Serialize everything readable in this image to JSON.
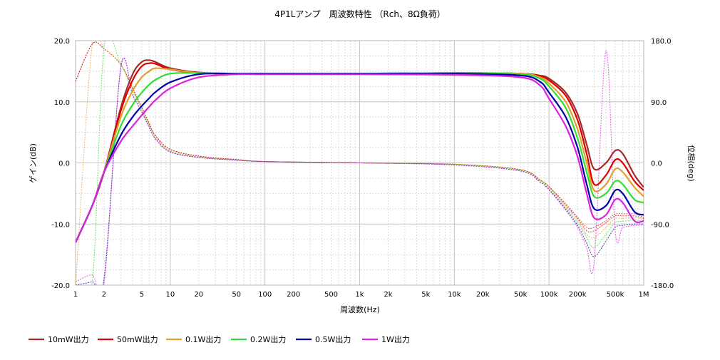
{
  "chart_data": {
    "type": "line",
    "title": "4P1Lアンプ　周波数特性 （Rch、8Ω負荷）",
    "xlabel": "周波数(Hz)",
    "ylabel": "ゲイン(dB)",
    "y2label": "位相(deg)",
    "xscale": "log",
    "xlim": [
      1,
      1000000
    ],
    "ylim": [
      -20,
      20
    ],
    "y2lim": [
      -180,
      180
    ],
    "grid": true,
    "legend_position": "bottom",
    "x_ticks": [
      {
        "v": 1,
        "label": "1"
      },
      {
        "v": 2,
        "label": "2"
      },
      {
        "v": 5,
        "label": "5"
      },
      {
        "v": 10,
        "label": "10"
      },
      {
        "v": 20,
        "label": "20"
      },
      {
        "v": 50,
        "label": "50"
      },
      {
        "v": 100,
        "label": "100"
      },
      {
        "v": 200,
        "label": "200"
      },
      {
        "v": 500,
        "label": "500"
      },
      {
        "v": 1000,
        "label": "1k"
      },
      {
        "v": 2000,
        "label": "2k"
      },
      {
        "v": 5000,
        "label": "5k"
      },
      {
        "v": 10000,
        "label": "10k"
      },
      {
        "v": 20000,
        "label": "20k"
      },
      {
        "v": 50000,
        "label": "50k"
      },
      {
        "v": 100000,
        "label": "100k"
      },
      {
        "v": 200000,
        "label": "200k"
      },
      {
        "v": 500000,
        "label": "500k"
      },
      {
        "v": 1000000,
        "label": "1M"
      }
    ],
    "y_ticks": [
      {
        "v": 20,
        "label": "20.0"
      },
      {
        "v": 10,
        "label": "10.0"
      },
      {
        "v": 0,
        "label": "0.0"
      },
      {
        "v": -10,
        "label": "-10.0"
      },
      {
        "v": -20,
        "label": "-20.0"
      }
    ],
    "y2_ticks": [
      {
        "v": 180,
        "label": "180.0"
      },
      {
        "v": 90,
        "label": "90.0"
      },
      {
        "v": 0,
        "label": "0.0"
      },
      {
        "v": -90,
        "label": "-90.0"
      },
      {
        "v": -180,
        "label": "-180.0"
      }
    ],
    "series": [
      {
        "name": "10mW出力",
        "color": "#a52a2a",
        "x": [
          1,
          1.5,
          2,
          3,
          4,
          5,
          6,
          7,
          10,
          20,
          50,
          100,
          1000,
          10000,
          50000,
          80000,
          100000,
          150000,
          200000,
          250000,
          300000,
          400000,
          500000,
          600000,
          800000,
          1000000
        ],
        "gain": [
          -13,
          -7,
          -1.5,
          9,
          14.5,
          16.5,
          16.8,
          16.5,
          15.5,
          14.8,
          14.6,
          14.6,
          14.6,
          14.7,
          14.6,
          14.3,
          13.8,
          11.5,
          8,
          3,
          -1,
          0,
          2,
          1.5,
          -2,
          -4
        ],
        "phase": [
          120,
          175,
          168,
          145,
          110,
          82,
          58,
          40,
          20,
          10,
          5,
          2,
          0,
          -2,
          -10,
          -25,
          -35,
          -60,
          -80,
          -95,
          -95,
          -85,
          -75,
          -75,
          -75,
          -80
        ]
      },
      {
        "name": "50mW出力",
        "color": "#dd0000",
        "x": [
          1,
          1.5,
          2,
          3,
          4,
          5,
          6,
          7,
          10,
          20,
          50,
          100,
          1000,
          10000,
          50000,
          80000,
          100000,
          150000,
          200000,
          250000,
          300000,
          400000,
          500000,
          600000,
          800000,
          1000000
        ],
        "gain": [
          -13,
          -7,
          -1.5,
          8.5,
          13.5,
          15.8,
          16.3,
          16.2,
          15.3,
          14.7,
          14.6,
          14.6,
          14.6,
          14.7,
          14.6,
          14.2,
          13.5,
          11,
          7,
          1.5,
          -3.5,
          -2,
          0.5,
          0,
          -3,
          -4.5
        ],
        "phase": [
          120,
          175,
          168,
          145,
          110,
          82,
          58,
          40,
          20,
          10,
          5,
          2,
          0,
          -2,
          -10,
          -25,
          -35,
          -62,
          -82,
          -100,
          -100,
          -88,
          -78,
          -78,
          -78,
          -82
        ]
      },
      {
        "name": "0.1W出力",
        "color": "#e0a030",
        "x": [
          1,
          1.5,
          2,
          3,
          4,
          5,
          6,
          7,
          10,
          20,
          50,
          100,
          1000,
          10000,
          50000,
          80000,
          100000,
          150000,
          200000,
          250000,
          300000,
          400000,
          500000,
          600000,
          800000,
          1000000
        ],
        "gain": [
          -13,
          -7,
          -1.5,
          7.5,
          11.8,
          14,
          15,
          15.5,
          15.3,
          14.7,
          14.6,
          14.6,
          14.6,
          14.7,
          14.6,
          14.0,
          13.0,
          10,
          5.5,
          0,
          -4.5,
          -3.5,
          -1,
          -1.5,
          -4,
          -5.5
        ],
        "phase": [
          -180,
          175,
          168,
          145,
          108,
          80,
          56,
          38,
          18,
          9,
          4,
          2,
          0,
          -2,
          -10,
          -25,
          -35,
          -64,
          -85,
          -105,
          -110,
          -95,
          -82,
          -82,
          -80,
          -84
        ]
      },
      {
        "name": "0.2W出力",
        "color": "#33dd33",
        "x": [
          1,
          1.5,
          2,
          3,
          4,
          5,
          6,
          7,
          10,
          20,
          50,
          100,
          1000,
          10000,
          50000,
          80000,
          100000,
          150000,
          200000,
          250000,
          300000,
          400000,
          500000,
          600000,
          800000,
          1000000
        ],
        "gain": [
          -13,
          -7,
          -1.5,
          6,
          9.5,
          11.5,
          12.8,
          13.6,
          14.6,
          14.7,
          14.6,
          14.6,
          14.6,
          14.7,
          14.5,
          13.8,
          12.5,
          9,
          4,
          -1.5,
          -5.5,
          -5,
          -3,
          -3.5,
          -6,
          -6.5
        ],
        "phase": [
          -180,
          -175,
          170,
          145,
          105,
          78,
          55,
          36,
          17,
          8,
          4,
          2,
          0,
          -2,
          -11,
          -27,
          -37,
          -66,
          -88,
          -110,
          -125,
          -105,
          -88,
          -86,
          -84,
          -86
        ]
      },
      {
        "name": "0.5W出力",
        "color": "#0000aa",
        "x": [
          1,
          1.5,
          2,
          3,
          4,
          5,
          6,
          7,
          10,
          20,
          50,
          100,
          1000,
          10000,
          50000,
          80000,
          100000,
          150000,
          200000,
          250000,
          300000,
          400000,
          500000,
          600000,
          800000,
          1000000
        ],
        "gain": [
          -13,
          -7,
          -1.5,
          4.5,
          7.5,
          9.3,
          10.6,
          11.6,
          13.2,
          14.5,
          14.6,
          14.6,
          14.6,
          14.6,
          14.3,
          13.3,
          11.5,
          7.5,
          2.5,
          -3.5,
          -7.5,
          -7,
          -4.5,
          -5,
          -8,
          -8.5
        ],
        "phase": [
          -180,
          -175,
          -170,
          140,
          100,
          75,
          52,
          35,
          16,
          8,
          4,
          2,
          0,
          -3,
          -12,
          -28,
          -39,
          -68,
          -92,
          -118,
          -138,
          -115,
          -95,
          -92,
          -90,
          -90
        ]
      },
      {
        "name": "1W出力",
        "color": "#dd22dd",
        "x": [
          1,
          1.5,
          2,
          3,
          4,
          5,
          6,
          7,
          10,
          20,
          50,
          100,
          1000,
          10000,
          50000,
          80000,
          100000,
          150000,
          200000,
          250000,
          300000,
          400000,
          500000,
          600000,
          800000,
          1000000
        ],
        "gain": [
          -13,
          -7,
          -1.5,
          3.5,
          6,
          7.8,
          9.2,
          10.3,
          12.2,
          14.0,
          14.5,
          14.5,
          14.5,
          14.4,
          14.0,
          12.7,
          10.5,
          6,
          1,
          -5,
          -9,
          -8.5,
          -6,
          -6.5,
          -9.5,
          -9.5
        ],
        "phase": [
          -175,
          -165,
          -178,
          140,
          100,
          75,
          52,
          35,
          16,
          8,
          4,
          2,
          0,
          -3,
          -12,
          -28,
          -40,
          -70,
          -95,
          -125,
          -145,
          165,
          -100,
          -95,
          -92,
          -92
        ]
      }
    ]
  }
}
